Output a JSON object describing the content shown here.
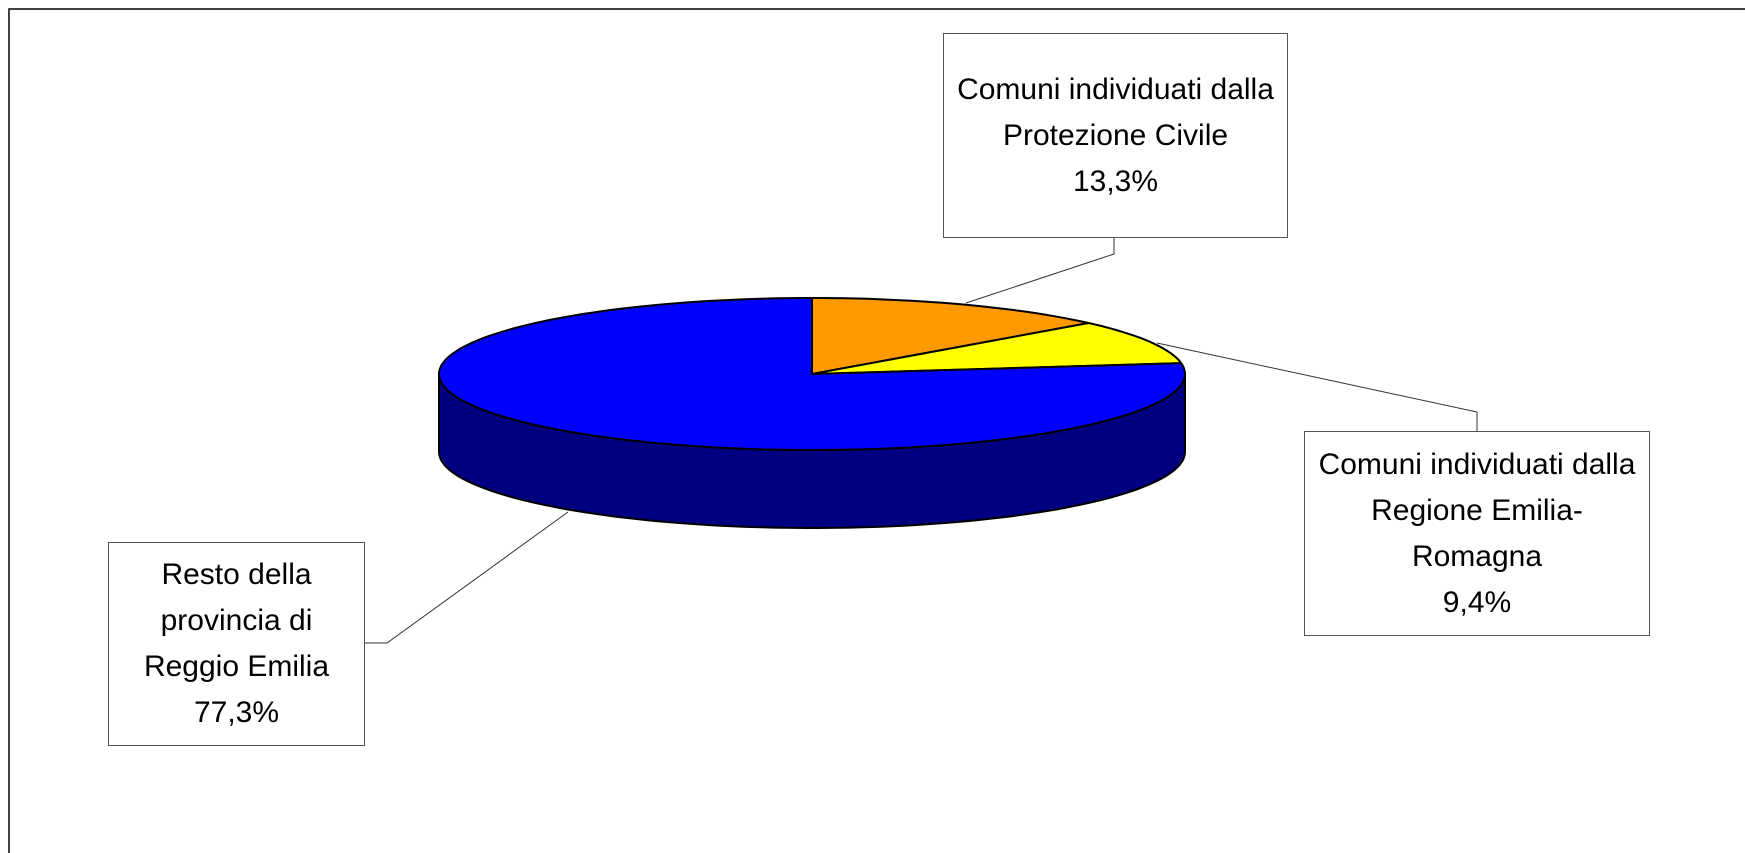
{
  "chart_data": {
    "type": "pie3d",
    "categories": [
      "Comuni individuati dalla Protezione Civile",
      "Comuni individuati dalla Regione Emilia-Romagna",
      "Resto della provincia di Reggio Emilia"
    ],
    "values": [
      13.3,
      9.4,
      77.3
    ],
    "value_labels": [
      "13,3%",
      "9,4%",
      "77,3%"
    ],
    "colors": [
      "#ff9900",
      "#ffff00",
      "#0000ff"
    ]
  }
}
